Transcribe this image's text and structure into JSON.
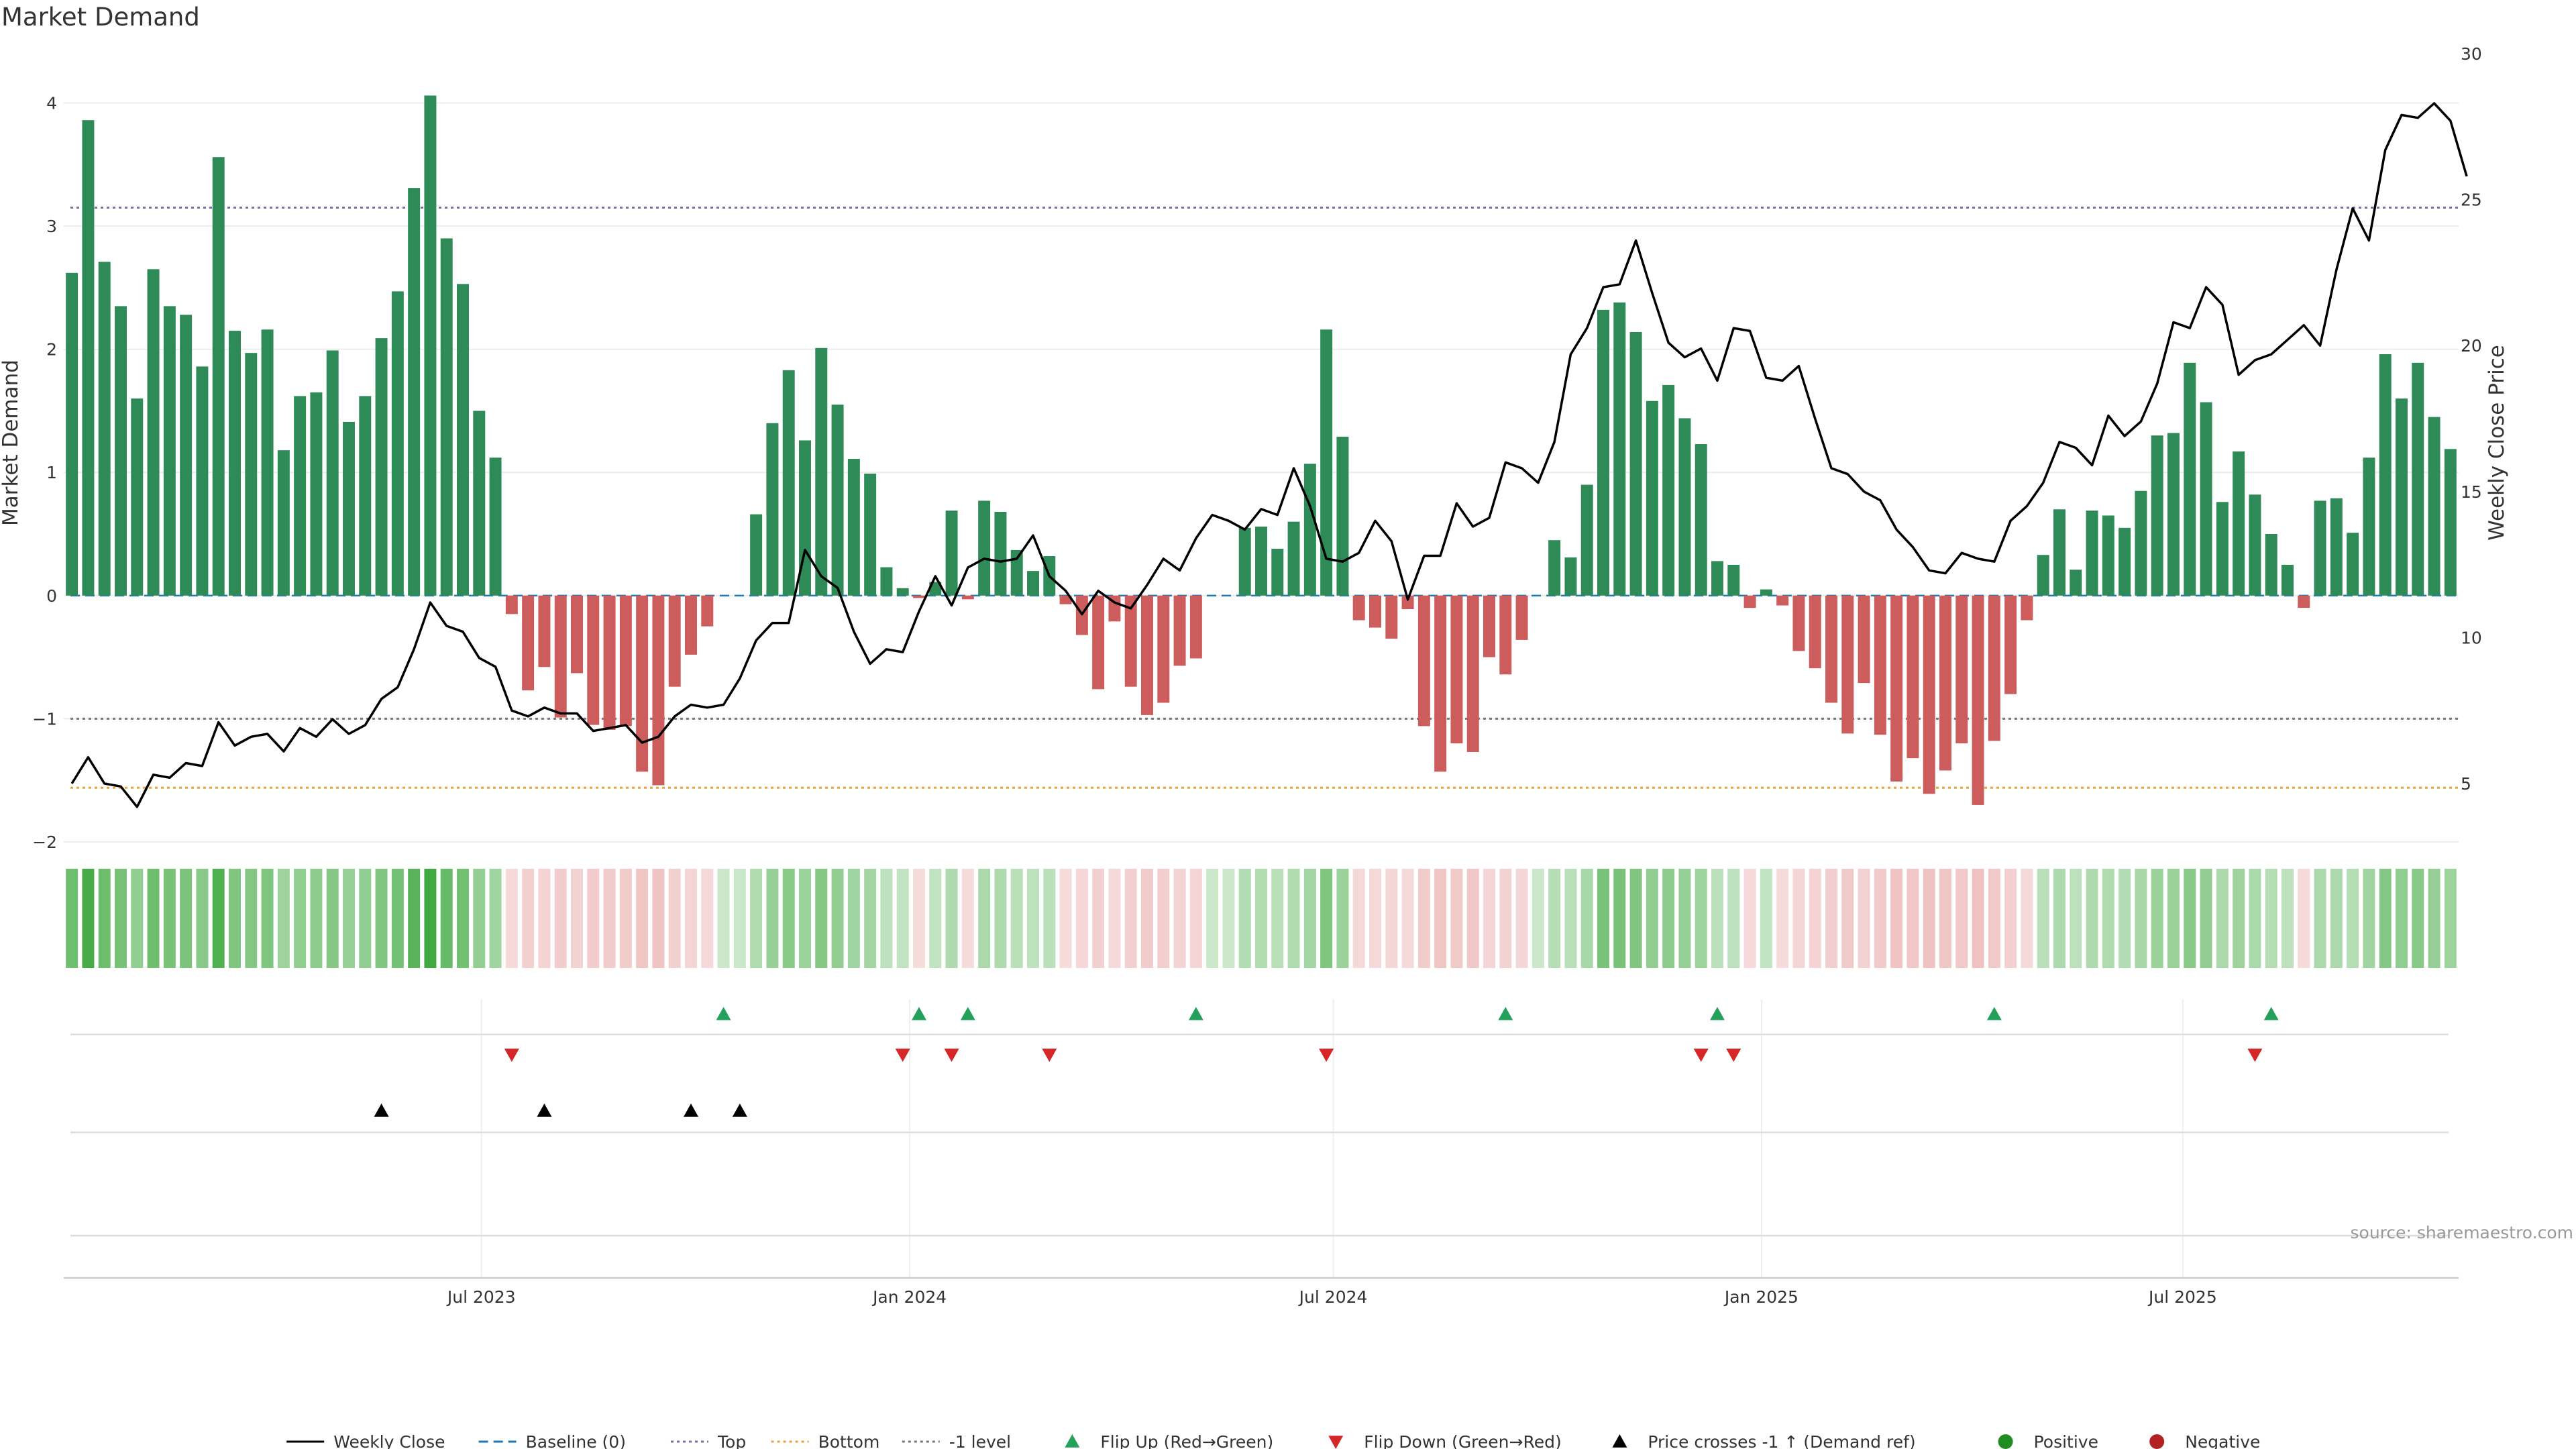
{
  "chart_data": {
    "type": "bar",
    "title": "Market Demand",
    "ylabel": "Market Demand",
    "y2label": "Weekly Close Price",
    "ylim": [
      -2.0,
      4.4
    ],
    "y2lim": [
      3.0,
      30.0
    ],
    "yticks": [
      "−2",
      "−1",
      "0",
      "1",
      "2",
      "3",
      "4"
    ],
    "yticks_values": [
      -2,
      -1,
      0,
      1,
      2,
      3,
      4
    ],
    "y2ticks": [
      "5",
      "10",
      "15",
      "20",
      "25",
      "30"
    ],
    "y2ticks_values": [
      5,
      10,
      15,
      20,
      25,
      30
    ],
    "x_dates": {
      "start": "2023-01-06",
      "end": "2025-11-28",
      "frequency": "weekly"
    },
    "xticks": [
      {
        "label": "Jul 2023",
        "date": "2023-07-01"
      },
      {
        "label": "Jan 2024",
        "date": "2024-01-01"
      },
      {
        "label": "Jul 2024",
        "date": "2024-07-01"
      },
      {
        "label": "Jan 2025",
        "date": "2025-01-01"
      },
      {
        "label": "Jul 2025",
        "date": "2025-07-01"
      }
    ],
    "reference_lines": [
      {
        "name": "Baseline (0)",
        "value": 0,
        "color": "#1f77b4",
        "style": "dashed"
      },
      {
        "name": "Top",
        "value": 3.15,
        "color": "#7b6fa8",
        "style": "dotted"
      },
      {
        "name": "Bottom",
        "value": -1.56,
        "color": "#e8a33d",
        "style": "dotted"
      },
      {
        "name": "-1 level",
        "value": -1.0,
        "color": "#777777",
        "style": "dotted"
      }
    ],
    "series": [
      {
        "name": "Market Demand",
        "kind": "bar",
        "positive_color": "#2e8b57",
        "negative_color": "#cd5c5c",
        "values": [
          2.62,
          3.86,
          2.71,
          2.35,
          1.6,
          2.65,
          2.35,
          2.28,
          1.86,
          3.56,
          2.15,
          1.97,
          2.16,
          1.18,
          1.62,
          1.65,
          1.99,
          1.41,
          1.62,
          2.09,
          2.47,
          3.31,
          4.06,
          2.9,
          2.53,
          1.5,
          1.12,
          -0.15,
          -0.77,
          -0.58,
          -0.99,
          -0.63,
          -1.05,
          -1.09,
          -1.06,
          -1.43,
          -1.54,
          -0.74,
          -0.48,
          -0.25,
          0.0,
          0.0,
          0.66,
          1.4,
          1.83,
          1.26,
          2.01,
          1.55,
          1.11,
          0.99,
          0.23,
          0.06,
          -0.02,
          0.11,
          0.69,
          -0.03,
          0.77,
          0.68,
          0.37,
          0.2,
          0.32,
          -0.07,
          -0.32,
          -0.76,
          -0.21,
          -0.74,
          -0.97,
          -0.87,
          -0.57,
          -0.51,
          0.0,
          0.0,
          0.55,
          0.56,
          0.38,
          0.6,
          1.07,
          2.16,
          1.29,
          -0.2,
          -0.26,
          -0.35,
          -0.11,
          -1.06,
          -1.43,
          -1.2,
          -1.27,
          -0.5,
          -0.64,
          -0.36,
          0.0,
          0.45,
          0.31,
          0.9,
          2.32,
          2.38,
          2.14,
          1.58,
          1.71,
          1.44,
          1.23,
          0.28,
          0.25,
          -0.1,
          0.05,
          -0.08,
          -0.45,
          -0.59,
          -0.87,
          -1.12,
          -0.71,
          -1.13,
          -1.51,
          -1.32,
          -1.61,
          -1.42,
          -1.2,
          -1.7,
          -1.18,
          -0.8,
          -0.2,
          0.33,
          0.7,
          0.21,
          0.69,
          0.65,
          0.55,
          0.85,
          1.3,
          1.32,
          1.89,
          1.57,
          0.76,
          1.17,
          0.82,
          0.5,
          0.25,
          -0.1,
          0.77,
          0.79,
          0.51,
          1.12,
          1.96,
          1.6,
          1.89,
          1.45,
          1.19
        ]
      },
      {
        "name": "Weekly Close",
        "kind": "line",
        "axis": "right",
        "color": "#000000",
        "values": [
          5.0,
          5.9,
          5.0,
          4.9,
          4.2,
          5.3,
          5.2,
          5.7,
          5.6,
          7.1,
          6.3,
          6.6,
          6.7,
          6.1,
          6.9,
          6.6,
          7.2,
          6.7,
          7.0,
          7.9,
          8.3,
          9.6,
          11.2,
          10.4,
          10.2,
          9.3,
          9.0,
          7.5,
          7.3,
          7.6,
          7.4,
          7.4,
          6.8,
          6.9,
          7.0,
          6.4,
          6.6,
          7.3,
          7.7,
          7.6,
          7.7,
          8.6,
          9.9,
          10.5,
          10.5,
          13.0,
          12.1,
          11.7,
          10.2,
          9.1,
          9.6,
          9.5,
          10.9,
          12.1,
          11.1,
          12.4,
          12.7,
          12.6,
          12.7,
          13.5,
          12.1,
          11.6,
          10.8,
          11.6,
          11.2,
          11.0,
          11.8,
          12.7,
          12.3,
          13.4,
          14.2,
          14.0,
          13.7,
          14.4,
          14.2,
          15.8,
          14.5,
          12.7,
          12.6,
          12.9,
          14.0,
          13.3,
          11.3,
          12.8,
          12.8,
          14.6,
          13.8,
          14.1,
          16.0,
          15.8,
          15.3,
          16.7,
          19.7,
          20.6,
          22.0,
          22.1,
          23.6,
          21.8,
          20.1,
          19.6,
          19.9,
          18.8,
          20.6,
          20.5,
          18.9,
          18.8,
          19.3,
          17.5,
          15.8,
          15.6,
          15.0,
          14.7,
          13.7,
          13.1,
          12.3,
          12.2,
          12.9,
          12.7,
          12.6,
          14.0,
          14.5,
          15.3,
          16.7,
          16.5,
          15.9,
          17.6,
          16.9,
          17.4,
          18.7,
          20.8,
          20.6,
          22.0,
          21.4,
          19.0,
          19.5,
          19.7,
          20.2,
          20.7,
          20.0,
          22.6,
          24.7,
          23.6,
          26.7,
          27.9,
          27.8,
          28.3,
          27.7,
          25.8
        ]
      }
    ],
    "intensity_strip": {
      "label": "Positive / Negative intensity",
      "positive_color": "#2ca02c",
      "negative_color": "#d6605f"
    },
    "flip_up_weeks": [
      40,
      52,
      55,
      69,
      88,
      101,
      118,
      135
    ],
    "flip_down_weeks": [
      27,
      51,
      54,
      60,
      77,
      100,
      102,
      134
    ],
    "price_cross_weeks": [
      19,
      29,
      38,
      41
    ],
    "legend": [
      {
        "label": "Weekly Close",
        "marker": "line",
        "color": "#000000"
      },
      {
        "label": "Baseline (0)",
        "marker": "dash",
        "color": "#1f77b4"
      },
      {
        "label": "Top",
        "marker": "dot",
        "color": "#7b6fa8"
      },
      {
        "label": "Bottom",
        "marker": "dot",
        "color": "#e8a33d"
      },
      {
        "label": "-1 level",
        "marker": "dot",
        "color": "#777777"
      },
      {
        "label": "Flip Up (Red→Green)",
        "marker": "triangle-up",
        "color": "#23a05a"
      },
      {
        "label": "Flip Down (Green→Red)",
        "marker": "triangle-down",
        "color": "#d62728"
      },
      {
        "label": "Price crosses -1 ↑ (Demand ref)",
        "marker": "triangle-up",
        "color": "#000000"
      },
      {
        "label": "Positive",
        "marker": "circle",
        "color": "#228b22"
      },
      {
        "label": "Negative",
        "marker": "circle",
        "color": "#b22222"
      }
    ],
    "legend_position": "bottom-center",
    "source": "source: sharemaestro.com"
  }
}
